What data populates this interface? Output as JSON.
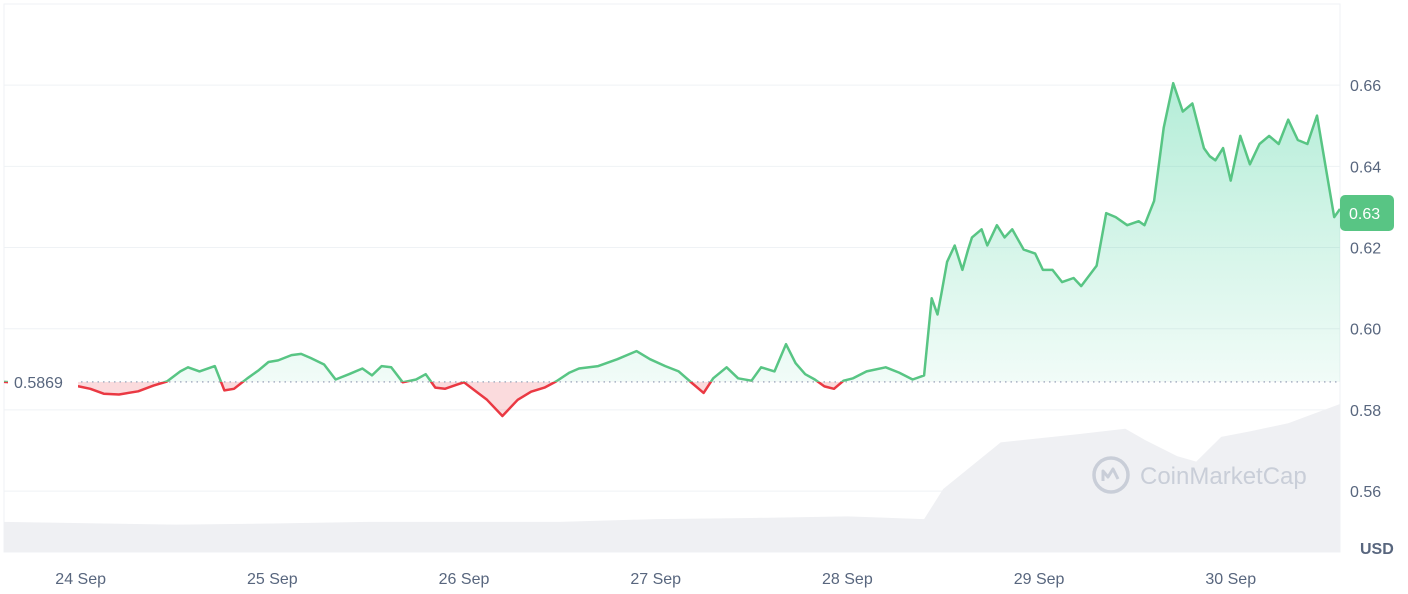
{
  "chart_data": {
    "type": "line",
    "title": "",
    "xlabel": "",
    "ylabel": "",
    "unit_label": "USD",
    "reference_price": 0.5869,
    "reference_label": "0.5869",
    "current_price_label": "0.63",
    "ylim": [
      0.545,
      0.68
    ],
    "yticks": [
      0.56,
      0.58,
      0.6,
      0.62,
      0.64,
      0.66
    ],
    "ytick_labels": [
      "0.56",
      "0.58",
      "0.60",
      "0.62",
      "0.64",
      "0.66"
    ],
    "xticks": [
      0,
      1,
      2,
      3,
      4,
      5,
      6
    ],
    "xtick_labels": [
      "24 Sep",
      "25 Sep",
      "26 Sep",
      "27 Sep",
      "28 Sep",
      "29 Sep",
      "30 Sep"
    ],
    "xlim": [
      -0.4,
      6.57
    ],
    "colors": {
      "up": "#16c784",
      "up_line": "#58c584",
      "down": "#ea3943",
      "grid": "#eff2f5",
      "volume": "#eff0f3",
      "badge": "#58c584"
    },
    "grid": true,
    "x": [
      -0.4,
      -0.01,
      0.05,
      0.12,
      0.2,
      0.3,
      0.38,
      0.45,
      0.52,
      0.56,
      0.62,
      0.7,
      0.75,
      0.8,
      0.87,
      0.93,
      0.98,
      1.03,
      1.1,
      1.15,
      1.2,
      1.27,
      1.33,
      1.4,
      1.47,
      1.52,
      1.57,
      1.62,
      1.68,
      1.75,
      1.8,
      1.85,
      1.9,
      1.96,
      2.0,
      2.05,
      2.12,
      2.2,
      2.28,
      2.35,
      2.42,
      2.48,
      2.55,
      2.6,
      2.7,
      2.8,
      2.9,
      2.97,
      3.05,
      3.12,
      3.18,
      3.25,
      3.3,
      3.37,
      3.43,
      3.5,
      3.55,
      3.62,
      3.68,
      3.73,
      3.78,
      3.83,
      3.88,
      3.93,
      3.98,
      4.03,
      4.1,
      4.2,
      4.27,
      4.34,
      4.4,
      4.44,
      4.47,
      4.49,
      4.52,
      4.56,
      4.6,
      4.63,
      4.65,
      4.7,
      4.73,
      4.78,
      4.82,
      4.86,
      4.92,
      4.98,
      5.02,
      5.07,
      5.12,
      5.18,
      5.22,
      5.3,
      5.35,
      5.4,
      5.46,
      5.52,
      5.55,
      5.6,
      5.65,
      5.7,
      5.75,
      5.8,
      5.86,
      5.89,
      5.92,
      5.96,
      6.0,
      6.05,
      6.1,
      6.15,
      6.2,
      6.25,
      6.3,
      6.35,
      6.4,
      6.45,
      6.5,
      6.54,
      6.57
    ],
    "y": [
      0.5869,
      0.5858,
      0.5852,
      0.584,
      0.5838,
      0.5846,
      0.586,
      0.587,
      0.5895,
      0.5905,
      0.5895,
      0.5908,
      0.5848,
      0.5852,
      0.5878,
      0.5898,
      0.5918,
      0.5922,
      0.5935,
      0.5938,
      0.5928,
      0.5912,
      0.5875,
      0.5888,
      0.5902,
      0.5885,
      0.5908,
      0.5905,
      0.5868,
      0.5875,
      0.5888,
      0.5855,
      0.5852,
      0.5862,
      0.5868,
      0.585,
      0.5825,
      0.5785,
      0.5825,
      0.5845,
      0.5855,
      0.587,
      0.5892,
      0.5902,
      0.5908,
      0.5925,
      0.5945,
      0.5925,
      0.5908,
      0.5895,
      0.587,
      0.5842,
      0.5878,
      0.5905,
      0.5878,
      0.5872,
      0.5905,
      0.5895,
      0.5962,
      0.5915,
      0.5888,
      0.5875,
      0.5858,
      0.5852,
      0.5872,
      0.5878,
      0.5895,
      0.5905,
      0.5892,
      0.5875,
      0.5885,
      0.6075,
      0.6035,
      0.6085,
      0.6165,
      0.6205,
      0.6145,
      0.6195,
      0.6225,
      0.6245,
      0.6205,
      0.6255,
      0.6225,
      0.6245,
      0.6195,
      0.6185,
      0.6145,
      0.6145,
      0.6115,
      0.6125,
      0.6105,
      0.6155,
      0.6285,
      0.6275,
      0.6255,
      0.6265,
      0.6255,
      0.6315,
      0.6495,
      0.6605,
      0.6535,
      0.6555,
      0.6445,
      0.6425,
      0.6415,
      0.6445,
      0.6365,
      0.6475,
      0.6405,
      0.6455,
      0.6475,
      0.6455,
      0.6515,
      0.6465,
      0.6455,
      0.6525,
      0.6385,
      0.6275,
      0.6295
    ],
    "volume": {
      "x": [
        -0.4,
        0.5,
        1.0,
        1.5,
        2.0,
        2.5,
        3.0,
        3.5,
        4.0,
        4.4,
        4.5,
        4.8,
        5.2,
        5.45,
        5.55,
        5.72,
        5.82,
        5.95,
        6.1,
        6.3,
        6.57
      ],
      "level": [
        0.055,
        0.05,
        0.052,
        0.055,
        0.055,
        0.055,
        0.06,
        0.062,
        0.065,
        0.06,
        0.115,
        0.2,
        0.215,
        0.225,
        0.205,
        0.175,
        0.165,
        0.21,
        0.22,
        0.235,
        0.27
      ]
    }
  },
  "watermark": "CoinMarketCap"
}
